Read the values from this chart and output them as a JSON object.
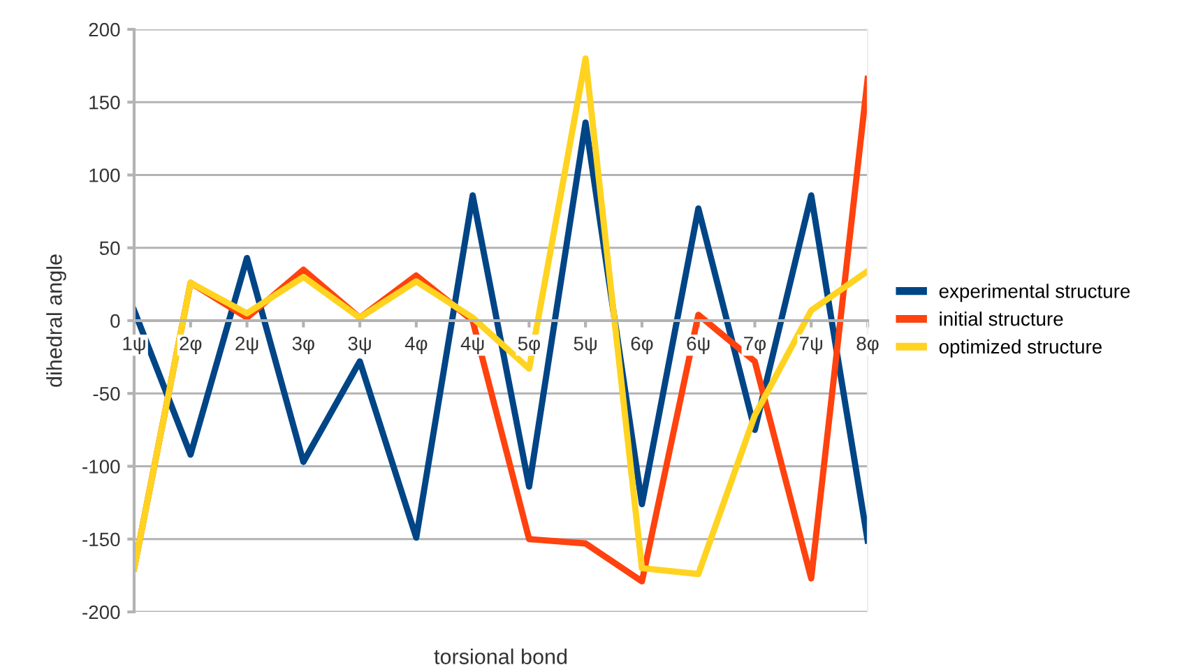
{
  "chart_data": {
    "type": "line",
    "xlabel": "torsional bond",
    "ylabel": "dihedral angle",
    "categories": [
      "1ψ",
      "2φ",
      "2ψ",
      "3φ",
      "3ψ",
      "4φ",
      "4ψ",
      "5φ",
      "5ψ",
      "6φ",
      "6ψ",
      "7φ",
      "7ψ",
      "8φ"
    ],
    "series": [
      {
        "name": "experimental structure",
        "color": "#004586",
        "values": [
          7,
          -92,
          43,
          -97,
          -28,
          -149,
          86,
          -114,
          136,
          -126,
          77,
          -75,
          86,
          -151
        ]
      },
      {
        "name": "initial structure",
        "color": "#ff420e",
        "values": [
          -170,
          26,
          2,
          35,
          2,
          31,
          0,
          -150,
          -153,
          -179,
          4,
          -28,
          -177,
          166
        ]
      },
      {
        "name": "optimized structure",
        "color": "#ffd320",
        "values": [
          -170,
          26,
          5,
          30,
          2,
          27,
          2,
          -33,
          180,
          -170,
          -174,
          -65,
          7,
          34
        ]
      }
    ],
    "ylim": [
      -200,
      200
    ],
    "yticks": [
      -200,
      -150,
      -100,
      -50,
      0,
      50,
      100,
      150,
      200
    ],
    "grid": "y",
    "legend": "right",
    "marker": "none",
    "line_style": "solid"
  }
}
